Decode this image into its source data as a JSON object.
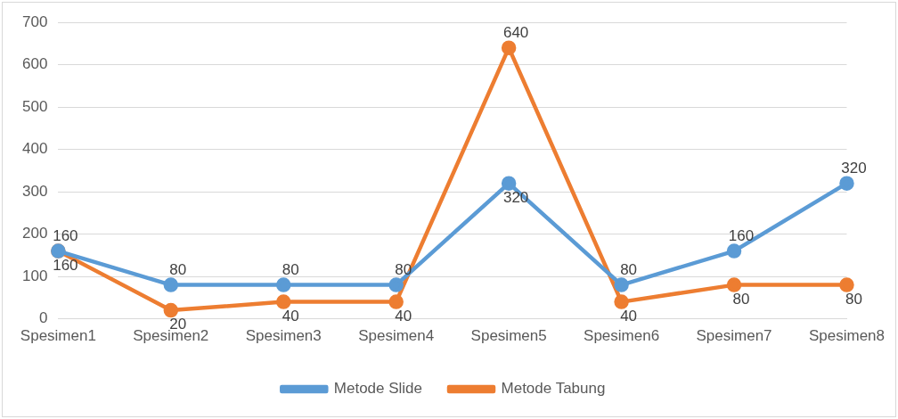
{
  "chart_data": {
    "type": "line",
    "categories": [
      "Spesimen1",
      "Spesimen2",
      "Spesimen3",
      "Spesimen4",
      "Spesimen5",
      "Spesimen6",
      "Spesimen7",
      "Spesimen8"
    ],
    "series": [
      {
        "name": "Metode Slide",
        "color": "#5b9bd5",
        "values": [
          160,
          80,
          80,
          80,
          320,
          80,
          160,
          320
        ]
      },
      {
        "name": "Metode Tabung",
        "color": "#ed7d31",
        "values": [
          160,
          20,
          40,
          40,
          640,
          40,
          80,
          80
        ]
      }
    ],
    "ylim": [
      0,
      700
    ],
    "yticks": [
      0,
      100,
      200,
      300,
      400,
      500,
      600,
      700
    ],
    "grid": "y",
    "legend": "bottom",
    "marker": "circle",
    "line_style": "solid",
    "data_labels": true
  }
}
